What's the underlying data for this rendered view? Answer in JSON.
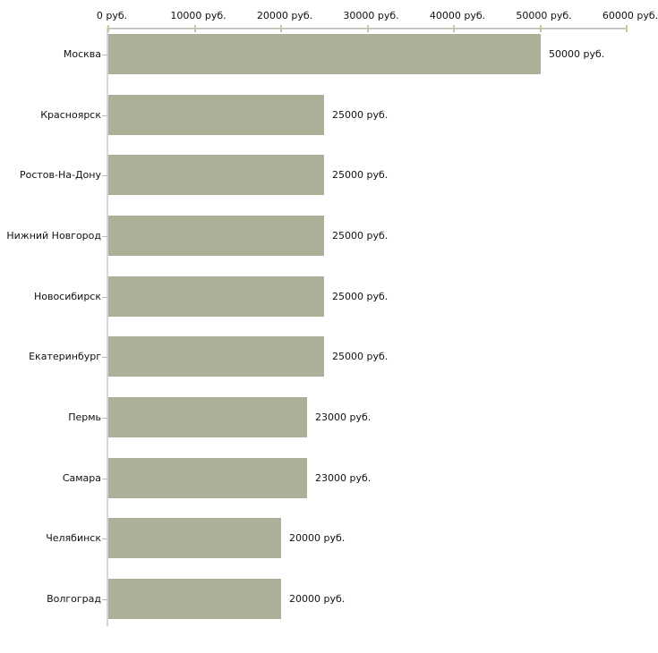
{
  "chart_data": {
    "type": "bar",
    "orientation": "horizontal",
    "title": "",
    "xlabel": "",
    "ylabel": "",
    "categories": [
      "Москва",
      "Красноярск",
      "Ростов-На-Дону",
      "Нижний Новгород",
      "Новосибирск",
      "Екатеринбург",
      "Пермь",
      "Самара",
      "Челябинск",
      "Волгоград"
    ],
    "values": [
      50000,
      25000,
      25000,
      25000,
      25000,
      25000,
      23000,
      23000,
      20000,
      20000
    ],
    "value_labels": [
      "50000 руб.",
      "25000 руб.",
      "25000 руб.",
      "25000 руб.",
      "25000 руб.",
      "25000 руб.",
      "23000 руб.",
      "23000 руб.",
      "20000 руб.",
      "20000 руб."
    ],
    "x_axis": {
      "position": "top",
      "min": 0,
      "max": 60000,
      "tick_values": [
        0,
        10000,
        20000,
        30000,
        40000,
        50000,
        60000
      ],
      "tick_labels": [
        "0 руб.",
        "10000 руб.",
        "20000 руб.",
        "30000 руб.",
        "40000 руб.",
        "50000 руб.",
        "60000 руб."
      ]
    },
    "grid": false,
    "legend": false,
    "colors": {
      "bar": "#abb198",
      "axis_line": "#c2c2c2",
      "x_tick": "#c6c79e",
      "y_tick": "#b9b9b9",
      "text": "#111111",
      "background": "#ffffff"
    }
  }
}
